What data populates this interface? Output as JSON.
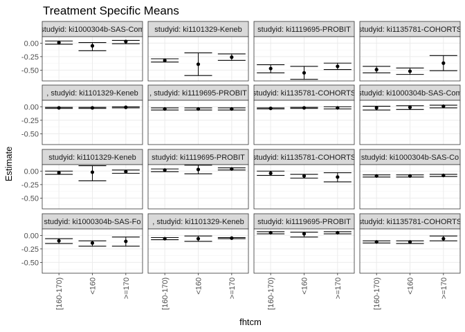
{
  "chart_data": {
    "type": "scatter",
    "title": "Treatment Specific Means",
    "xlabel": "fhtcm",
    "ylabel": "Estimate",
    "categories": [
      "[160-170)",
      "<160",
      ">=170"
    ],
    "ylim": [
      -0.7,
      0.12
    ],
    "yticks": [
      0.0,
      -0.25,
      -0.5
    ],
    "ytick_labels": [
      "0.00",
      "-0.25",
      "-0.50"
    ],
    "grid": true,
    "facet_grid": {
      "rows": 4,
      "cols": 4
    },
    "panels": [
      {
        "label": "studyid: ki1000304b-SAS-Com",
        "estimates": [
          0.01,
          -0.05,
          0.03
        ],
        "lower": [
          -0.02,
          -0.14,
          -0.01
        ],
        "upper": [
          0.04,
          0.01,
          0.05
        ]
      },
      {
        "label": "studyid: ki1101329-Keneb",
        "estimates": [
          -0.32,
          -0.39,
          -0.26
        ],
        "lower": [
          -0.35,
          -0.6,
          -0.32
        ],
        "upper": [
          -0.29,
          -0.18,
          -0.2
        ]
      },
      {
        "label": "studyid: ki1119695-PROBIT",
        "estimates": [
          -0.47,
          -0.55,
          -0.43
        ],
        "lower": [
          -0.55,
          -0.67,
          -0.49
        ],
        "upper": [
          -0.4,
          -0.43,
          -0.37
        ]
      },
      {
        "label": "studyid: ki1135781-COHORTS",
        "estimates": [
          -0.49,
          -0.52,
          -0.37
        ],
        "lower": [
          -0.55,
          -0.58,
          -0.51
        ],
        "upper": [
          -0.43,
          -0.46,
          -0.23
        ]
      },
      {
        "label": ", studyid: ki1101329-Keneb",
        "estimates": [
          -0.02,
          -0.02,
          -0.01
        ],
        "lower": [
          -0.03,
          -0.03,
          -0.02
        ],
        "upper": [
          -0.01,
          -0.01,
          0.0
        ]
      },
      {
        "label": ", studyid: ki1119695-PROBIT",
        "estimates": [
          -0.04,
          -0.04,
          -0.04
        ],
        "lower": [
          -0.06,
          -0.06,
          -0.06
        ],
        "upper": [
          -0.02,
          -0.02,
          -0.02
        ]
      },
      {
        "label": "studyid: ki1135781-COHORTS",
        "estimates": [
          -0.03,
          -0.02,
          -0.02
        ],
        "lower": [
          -0.04,
          -0.03,
          -0.04
        ],
        "upper": [
          -0.02,
          -0.01,
          0.0
        ]
      },
      {
        "label": "studyid: ki1000304b-SAS-Com",
        "estimates": [
          -0.02,
          -0.01,
          0.01
        ],
        "lower": [
          -0.06,
          -0.05,
          -0.02
        ],
        "upper": [
          0.01,
          0.02,
          0.03
        ]
      },
      {
        "label": "studyid: ki1101329-Keneb",
        "estimates": [
          -0.03,
          -0.02,
          -0.01
        ],
        "lower": [
          -0.06,
          -0.18,
          -0.04
        ],
        "upper": [
          0.0,
          0.1,
          0.02
        ]
      },
      {
        "label": "studyid: ki1119695-PROBIT",
        "estimates": [
          0.02,
          0.03,
          0.04
        ],
        "lower": [
          -0.01,
          -0.05,
          0.02
        ],
        "upper": [
          0.04,
          0.11,
          0.06
        ]
      },
      {
        "label": "studyid: ki1135781-COHORTS",
        "estimates": [
          -0.04,
          -0.09,
          -0.11
        ],
        "lower": [
          -0.08,
          -0.13,
          -0.2
        ],
        "upper": [
          0.0,
          -0.06,
          -0.03
        ]
      },
      {
        "label": "studyid: ki1000304b-SAS-Co",
        "estimates": [
          -0.09,
          -0.09,
          -0.08
        ],
        "lower": [
          -0.11,
          -0.11,
          -0.1
        ],
        "upper": [
          -0.07,
          -0.07,
          -0.06
        ]
      },
      {
        "label": "studyid: ki1000304b-SAS-Fo",
        "estimates": [
          -0.1,
          -0.14,
          -0.11
        ],
        "lower": [
          -0.15,
          -0.2,
          -0.2
        ],
        "upper": [
          -0.06,
          -0.1,
          -0.03
        ]
      },
      {
        "label": ", studyid: ki1101329-Keneb",
        "estimates": [
          -0.06,
          -0.06,
          -0.05
        ],
        "lower": [
          -0.08,
          -0.11,
          -0.06
        ],
        "upper": [
          -0.04,
          -0.01,
          -0.04
        ]
      },
      {
        "label": "studyid: ki1119695-PROBIT",
        "estimates": [
          0.05,
          0.03,
          0.05
        ],
        "lower": [
          0.03,
          -0.03,
          0.03
        ],
        "upper": [
          0.07,
          0.06,
          0.07
        ]
      },
      {
        "label": "studyid: ki1135781-COHORTS",
        "estimates": [
          -0.12,
          -0.12,
          -0.06
        ],
        "lower": [
          -0.14,
          -0.15,
          -0.1
        ],
        "upper": [
          -0.1,
          -0.1,
          -0.01
        ]
      }
    ]
  }
}
